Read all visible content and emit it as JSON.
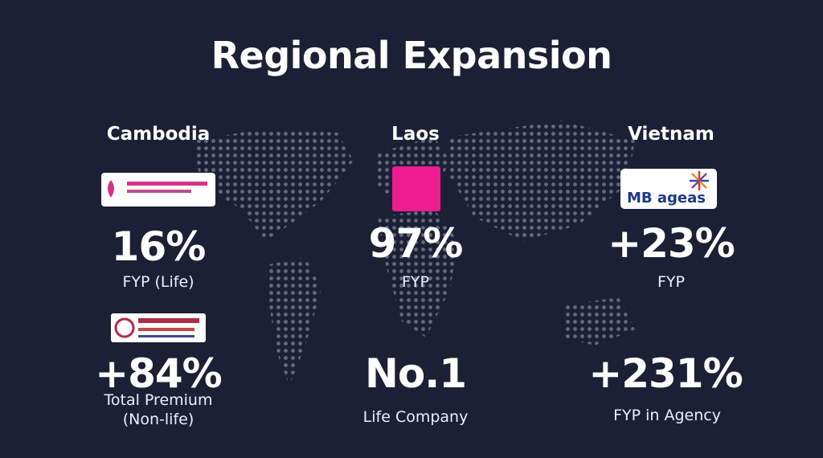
{
  "title": "Regional Expansion",
  "columns": [
    {
      "country": "Cambodia",
      "metrics": [
        {
          "value": "16%",
          "label": "FYP (Life)"
        },
        {
          "value": "+84%",
          "label": "Total Premium (Non-life)"
        }
      ]
    },
    {
      "country": "Laos",
      "metrics": [
        {
          "value": "97%",
          "label": "FYP"
        },
        {
          "value": "No.1",
          "label": "Life Company"
        }
      ]
    },
    {
      "country": "Vietnam",
      "logo": "MB ageas",
      "metrics": [
        {
          "value": "+23%",
          "label": "FYP"
        },
        {
          "value": "+231%",
          "label": "FYP in Agency"
        }
      ]
    }
  ]
}
